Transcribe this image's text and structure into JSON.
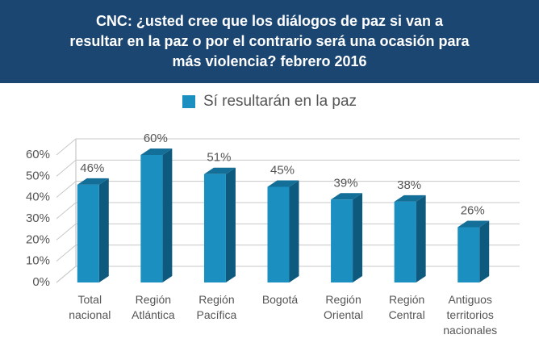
{
  "chart_data": {
    "type": "bar3d",
    "title": "CNC: ¿usted cree que los diálogos de paz si van a resultar en la paz o por el contrario será una ocasión para más violencia? febrero 2016",
    "categories": [
      "Total nacional",
      "Región Atlántica",
      "Región Pacífica",
      "Bogotá",
      "Región Oriental",
      "Región Central",
      "Antiguos territorios nacionales"
    ],
    "series": [
      {
        "name": "Sí resultarán en la paz",
        "color": "#1b8fbf",
        "values": [
          46,
          60,
          51,
          45,
          39,
          38,
          26
        ],
        "value_labels": [
          "46%",
          "60%",
          "51%",
          "45%",
          "39%",
          "38%",
          "26%"
        ]
      }
    ],
    "ylim": [
      0,
      60
    ],
    "yticks": [
      {
        "value": 0,
        "label": "0%"
      },
      {
        "value": 10,
        "label": "10%"
      },
      {
        "value": 20,
        "label": "20%"
      },
      {
        "value": 30,
        "label": "30%"
      },
      {
        "value": 40,
        "label": "40%"
      },
      {
        "value": 50,
        "label": "50%"
      },
      {
        "value": 60,
        "label": "60%"
      }
    ],
    "grid": true,
    "legend": "top"
  }
}
